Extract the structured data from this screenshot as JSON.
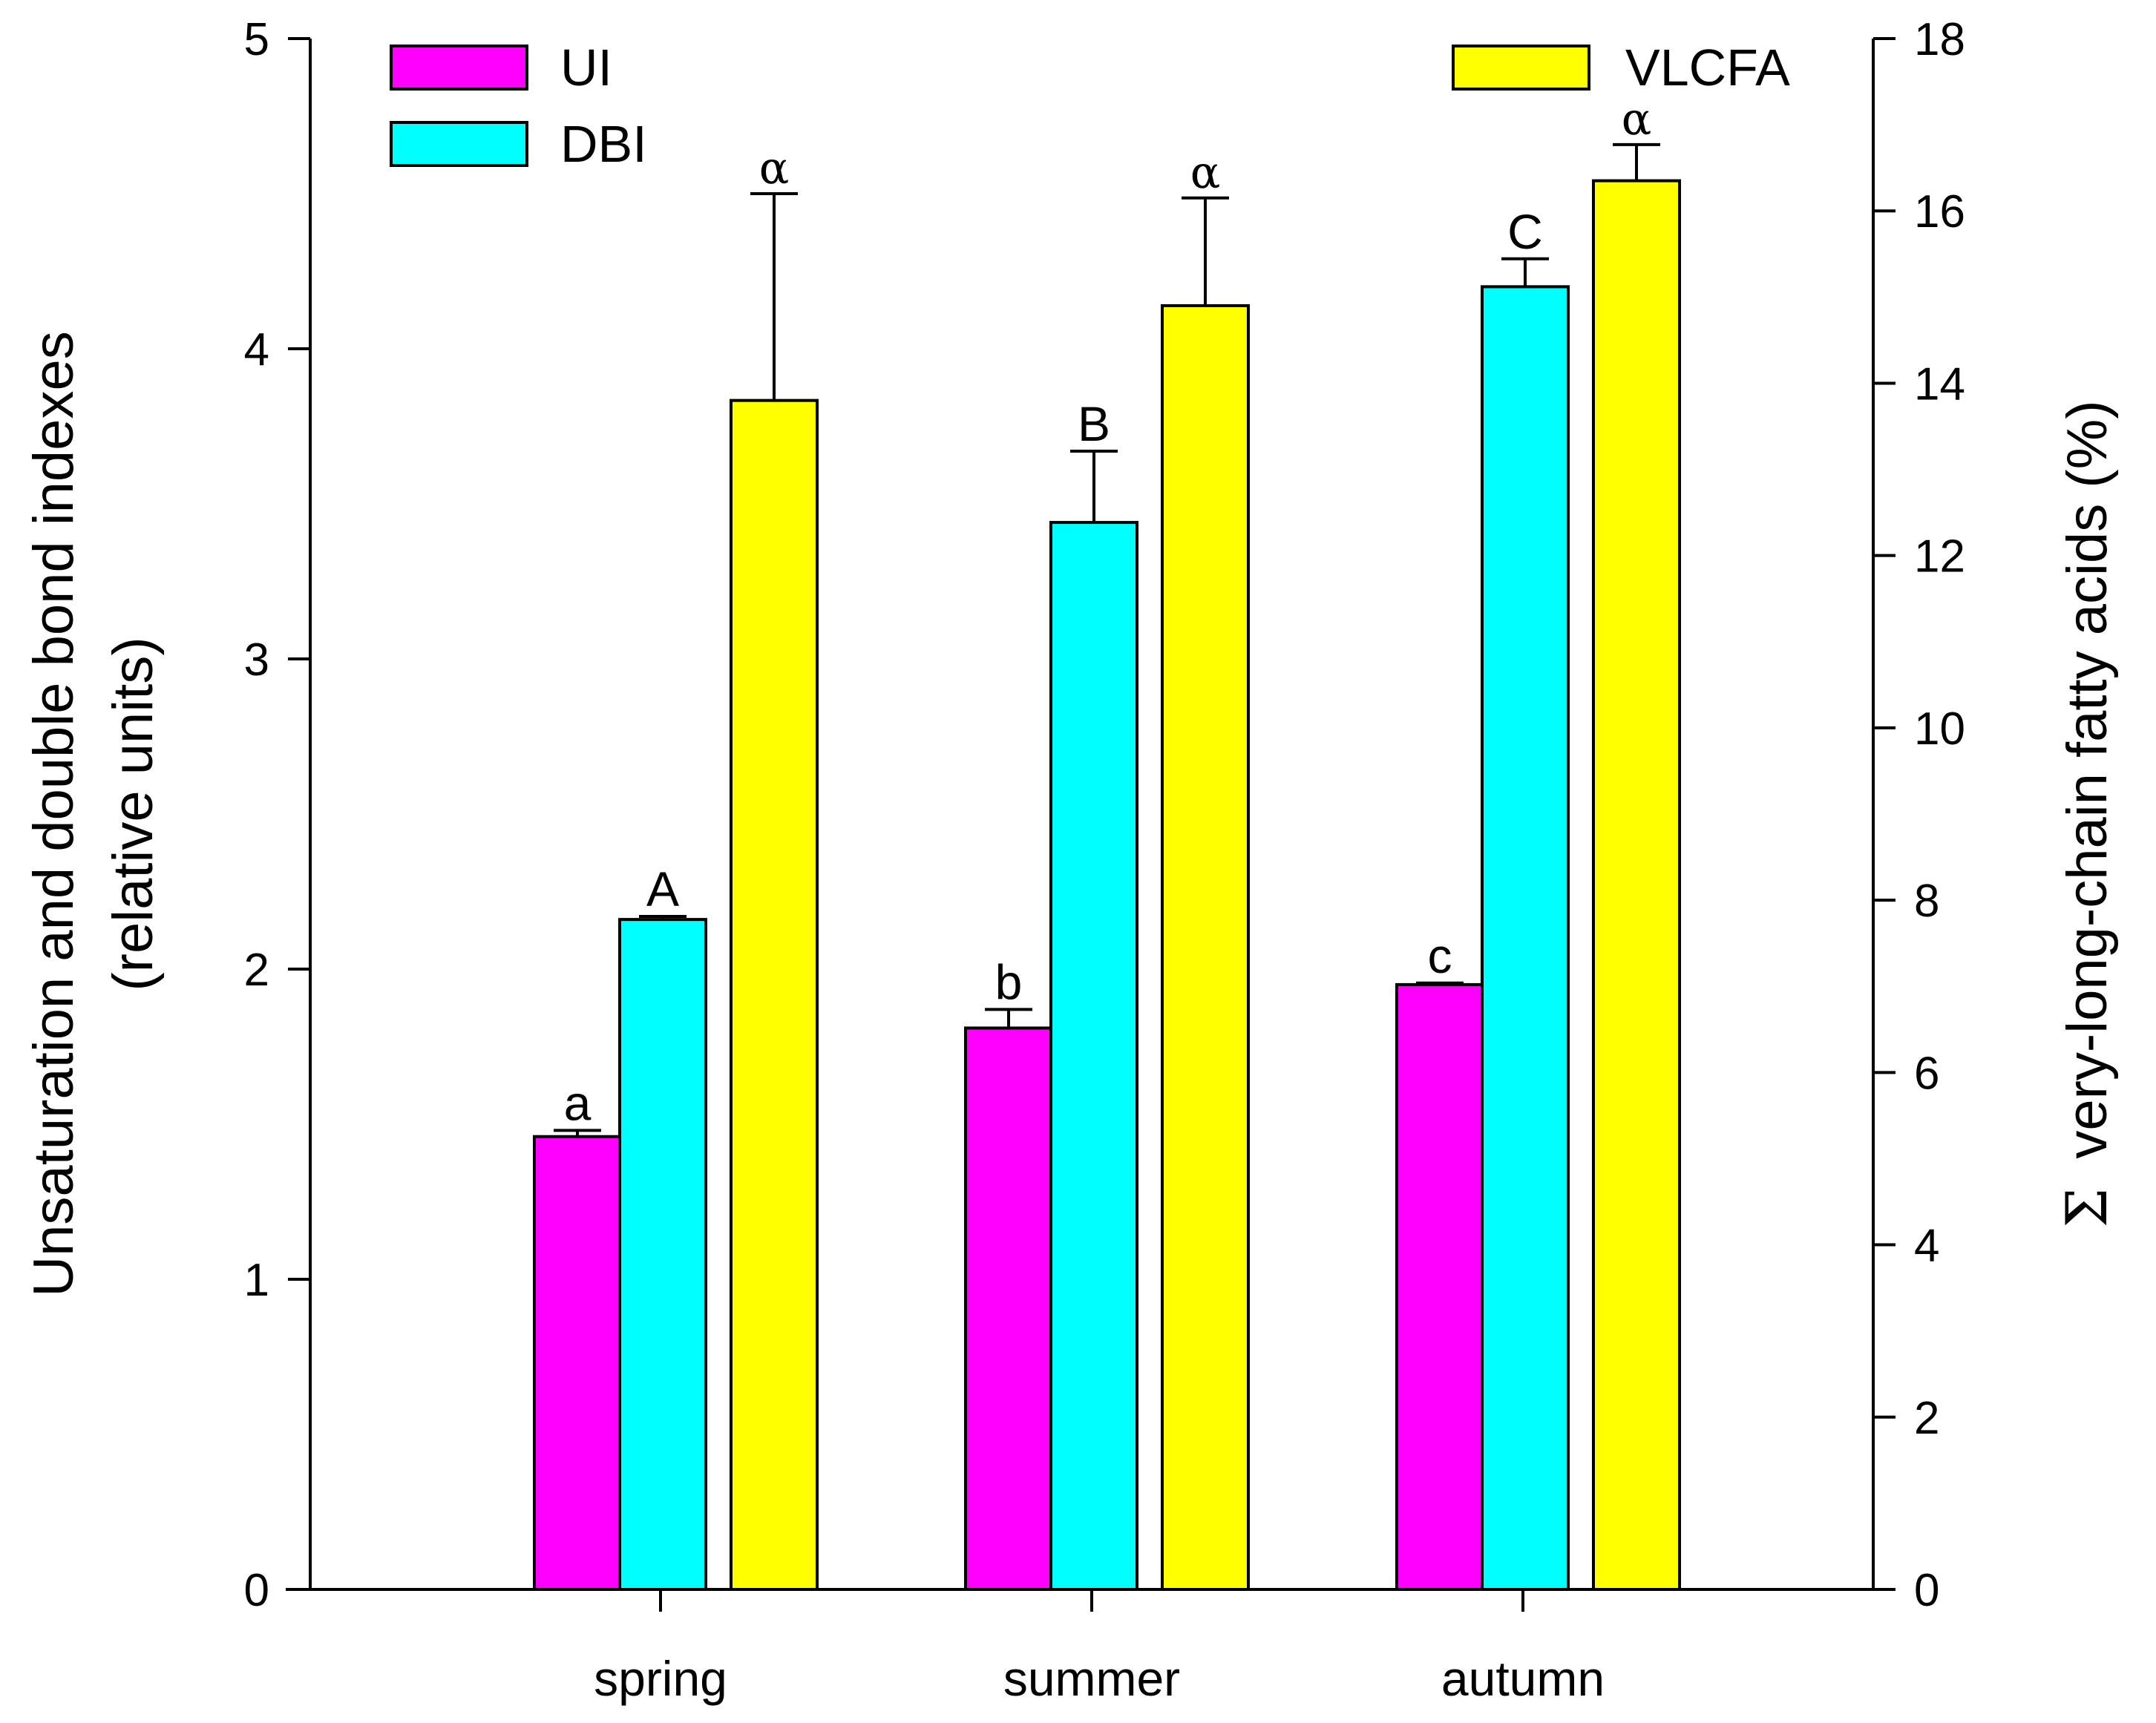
{
  "chart_data": {
    "type": "bar",
    "categories": [
      "spring",
      "summer",
      "autumn"
    ],
    "left_axis": {
      "label_line1": "Unsaturation and double bond indexes",
      "label_line2": "(relative units)",
      "ylim": [
        0,
        5
      ],
      "ticks": [
        "0",
        "1",
        "2",
        "3",
        "4",
        "5"
      ]
    },
    "right_axis": {
      "label_prefix": "Σ",
      "label": "very-long-chain fatty acids (%)",
      "ylim": [
        0,
        18
      ],
      "ticks": [
        "0",
        "2",
        "4",
        "6",
        "8",
        "10",
        "12",
        "14",
        "16",
        "18"
      ]
    },
    "series": [
      {
        "name": "UI",
        "axis": "left",
        "color": "#ff00ff",
        "values": [
          1.46,
          1.81,
          1.95
        ],
        "errors": [
          0.02,
          0.06,
          0.005
        ],
        "letters": [
          "a",
          "b",
          "c"
        ]
      },
      {
        "name": "DBI",
        "axis": "left",
        "color": "#00ffff",
        "values": [
          2.16,
          3.44,
          4.2
        ],
        "errors": [
          0.01,
          0.23,
          0.09
        ],
        "letters": [
          "A",
          "B",
          "C"
        ]
      },
      {
        "name": "VLCFA",
        "axis": "right",
        "color": "#ffff00",
        "values": [
          13.8,
          14.9,
          16.35
        ],
        "errors": [
          2.4,
          1.25,
          0.42
        ],
        "letters": [
          "α",
          "α",
          "α"
        ]
      }
    ],
    "legend": {
      "left_placement": "top-left",
      "right_placement": "top-right",
      "left_items": [
        "UI",
        "DBI"
      ],
      "right_items": [
        "VLCFA"
      ]
    }
  }
}
